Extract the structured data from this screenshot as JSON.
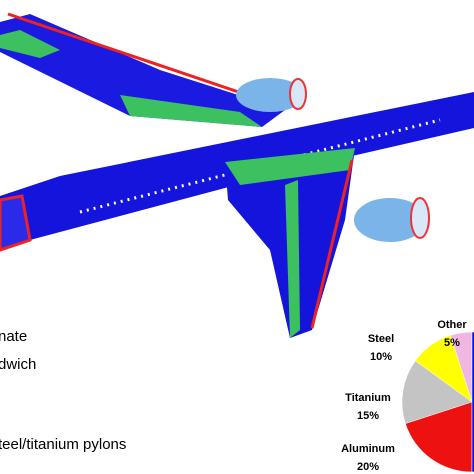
{
  "chart_data": {
    "type": "pie",
    "categories": [
      "Other",
      "Steel",
      "Titanium",
      "Aluminum",
      null
    ],
    "values": [
      5,
      10,
      15,
      20,
      50
    ],
    "value_labels": [
      "5%",
      "10%",
      "15%",
      "20%",
      null
    ],
    "colors": [
      "#f2b6e2",
      "#ffff00",
      "#c4c4c4",
      "#ee1111",
      "#0010e8"
    ],
    "annotations": [
      "nate",
      "dwich",
      "teel/titanium pylons"
    ]
  }
}
